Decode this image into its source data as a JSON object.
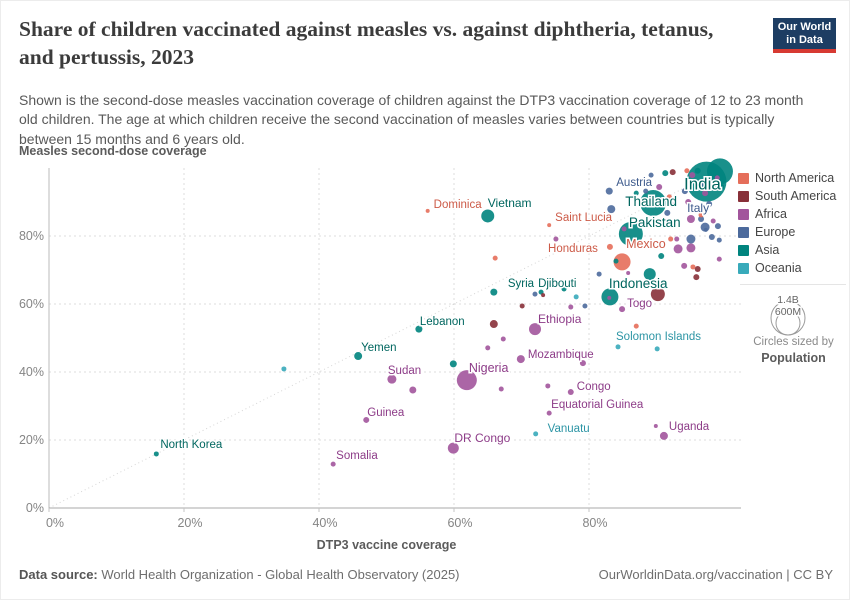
{
  "header": {
    "title": "Share of children vaccinated against measles vs. against diphtheria, tetanus, and pertussis, 2023",
    "subtitle": "Shown is the second-dose measles vaccination coverage of children against the DTP3 vaccination coverage of 12 to 23 month old children. The age at which children receive the second vaccination of measles varies between countries but is typically between 15 months and 6 years old.",
    "logo": {
      "line1": "Our World",
      "line2": "in Data"
    }
  },
  "size_legend": {
    "big_value": "1.4B",
    "small_value": "600M",
    "caption": "Circles sized by",
    "caption_bold": "Population"
  },
  "footer": {
    "source_label": "Data source:",
    "source_text": " World Health Organization - Global Health Observatory (2025)",
    "right_text": "OurWorldinData.org/vaccination | CC BY"
  },
  "chart_data": {
    "type": "scatter",
    "title": "Share of children vaccinated against measles vs. against diphtheria, tetanus, and pertussis, 2023",
    "xlabel": "DTP3 vaccine coverage",
    "ylabel": "Measles second-dose coverage",
    "xlim": [
      0,
      100
    ],
    "ylim": [
      0,
      100
    ],
    "grid": "dashed",
    "parity_line": true,
    "x_ticks": [
      {
        "v": 0,
        "label": "0%"
      },
      {
        "v": 20,
        "label": "20%"
      },
      {
        "v": 40,
        "label": "40%"
      },
      {
        "v": 60,
        "label": "60%"
      },
      {
        "v": 80,
        "label": "80%"
      }
    ],
    "y_ticks": [
      {
        "v": 0,
        "label": "0%"
      },
      {
        "v": 20,
        "label": "20%"
      },
      {
        "v": 40,
        "label": "40%"
      },
      {
        "v": 60,
        "label": "60%"
      },
      {
        "v": 80,
        "label": "80%"
      }
    ],
    "legend_position": "right",
    "series": [
      {
        "name": "North America",
        "color": "#e56e5a",
        "label_color": "#cc5a47",
        "points": [
          {
            "name": "Mexico",
            "x": 84.9,
            "y": 72.4,
            "r": 8.5,
            "label": {
              "dx": 4,
              "dy": -14,
              "size": 12.5,
              "anchor": "start"
            }
          },
          {
            "name": "Honduras",
            "x": 83.1,
            "y": 76.8,
            "r": 3,
            "label": {
              "dx": -12,
              "dy": 5,
              "size": 11.5,
              "anchor": "end"
            }
          },
          {
            "name": "Dominica",
            "x": 56.1,
            "y": 87.4,
            "r": 2,
            "label": {
              "dx": 6,
              "dy": -3,
              "size": 11.5,
              "anchor": "start"
            }
          },
          {
            "name": "Saint Lucia",
            "x": 74.1,
            "y": 83.2,
            "r": 2,
            "label": {
              "dx": 6,
              "dy": -4,
              "size": 11.5,
              "anchor": "start"
            }
          },
          {
            "x": 66.1,
            "y": 73.5,
            "r": 2.5
          },
          {
            "x": 87.0,
            "y": 53.5,
            "r": 2.5
          },
          {
            "x": 91.9,
            "y": 91.5,
            "r": 2.5
          },
          {
            "x": 92.1,
            "y": 79.1,
            "r": 2.5
          },
          {
            "x": 94.5,
            "y": 99.2,
            "r": 2.5
          },
          {
            "x": 95.4,
            "y": 70.9,
            "r": 2.5
          },
          {
            "x": 96.6,
            "y": 86.2,
            "r": 2.5
          }
        ]
      },
      {
        "name": "South America",
        "color": "#883039",
        "label_color": "#7a2b33",
        "points": [
          {
            "x": 90.2,
            "y": 62.9,
            "r": 7
          },
          {
            "x": 65.9,
            "y": 54.1,
            "r": 4
          },
          {
            "x": 70.1,
            "y": 59.4,
            "r": 2.5
          },
          {
            "x": 73.2,
            "y": 62.6,
            "r": 2
          },
          {
            "x": 92.4,
            "y": 98.8,
            "r": 3
          },
          {
            "x": 98.4,
            "y": 95.0,
            "r": 3
          },
          {
            "x": 96.1,
            "y": 70.3,
            "r": 3
          },
          {
            "x": 95.9,
            "y": 67.9,
            "r": 3
          }
        ]
      },
      {
        "name": "Africa",
        "color": "#a2559c",
        "label_color": "#8d3c88",
        "points": [
          {
            "name": "Nigeria",
            "x": 61.9,
            "y": 37.6,
            "r": 10,
            "label": {
              "dx": 2,
              "dy": -8,
              "size": 12.5,
              "anchor": "start"
            }
          },
          {
            "name": "Ethiopia",
            "x": 72.0,
            "y": 52.6,
            "r": 6,
            "label": {
              "dx": 3,
              "dy": -6,
              "size": 12,
              "anchor": "start"
            }
          },
          {
            "name": "DR Congo",
            "x": 59.9,
            "y": 17.6,
            "r": 5.5,
            "label": {
              "dx": 1,
              "dy": -6,
              "size": 12,
              "anchor": "start"
            }
          },
          {
            "name": "Sudan",
            "x": 50.8,
            "y": 37.9,
            "r": 4.5,
            "label": {
              "dx": -4,
              "dy": -5,
              "size": 11.5,
              "anchor": "start"
            }
          },
          {
            "name": "Mozambique",
            "x": 69.9,
            "y": 43.8,
            "r": 4,
            "label": {
              "dx": 7,
              "dy": -1,
              "size": 11.5,
              "anchor": "start"
            }
          },
          {
            "name": "Uganda",
            "x": 91.1,
            "y": 21.2,
            "r": 4,
            "label": {
              "dx": 5,
              "dy": -6,
              "size": 11.5,
              "anchor": "start"
            }
          },
          {
            "name": "Togo",
            "x": 84.9,
            "y": 58.5,
            "r": 3,
            "label": {
              "dx": 5,
              "dy": -2,
              "size": 11.5,
              "anchor": "start"
            }
          },
          {
            "name": "Congo",
            "x": 77.3,
            "y": 34.1,
            "r": 3,
            "label": {
              "dx": 6,
              "dy": -2,
              "size": 11.5,
              "anchor": "start"
            }
          },
          {
            "name": "Guinea",
            "x": 47.0,
            "y": 25.9,
            "r": 3,
            "label": {
              "dx": 1,
              "dy": -4,
              "size": 11.5,
              "anchor": "start"
            }
          },
          {
            "name": "Equatorial Guinea",
            "x": 74.1,
            "y": 27.9,
            "r": 2.5,
            "label": {
              "dx": 2,
              "dy": -5,
              "size": 11.5,
              "anchor": "start"
            }
          },
          {
            "name": "Somalia",
            "x": 42.1,
            "y": 12.9,
            "r": 2.5,
            "label": {
              "dx": 3,
              "dy": -5,
              "size": 11.5,
              "anchor": "start"
            }
          },
          {
            "x": 53.9,
            "y": 34.7,
            "r": 3.5
          },
          {
            "x": 89.9,
            "y": 24.1,
            "r": 2
          },
          {
            "x": 79.1,
            "y": 42.6,
            "r": 3
          },
          {
            "x": 67.3,
            "y": 49.7,
            "r": 2.5
          },
          {
            "x": 65.0,
            "y": 47.1,
            "r": 2.5
          },
          {
            "x": 77.3,
            "y": 59.1,
            "r": 2.5
          },
          {
            "x": 85.8,
            "y": 69.1,
            "r": 2
          },
          {
            "x": 73.9,
            "y": 35.9,
            "r": 2.5
          },
          {
            "x": 67.0,
            "y": 35.0,
            "r": 2.5
          },
          {
            "x": 83.0,
            "y": 61.8,
            "r": 2
          },
          {
            "x": 75.1,
            "y": 79.1,
            "r": 2.5
          },
          {
            "x": 85.2,
            "y": 82.1,
            "r": 2.5
          },
          {
            "x": 90.4,
            "y": 94.4,
            "r": 3
          },
          {
            "x": 92.4,
            "y": 89.1,
            "r": 2.5
          },
          {
            "x": 94.7,
            "y": 90.0,
            "r": 3
          },
          {
            "x": 95.3,
            "y": 97.9,
            "r": 3
          },
          {
            "x": 97.2,
            "y": 92.6,
            "r": 3
          },
          {
            "x": 99.0,
            "y": 97.1,
            "r": 2.5
          },
          {
            "x": 98.4,
            "y": 84.4,
            "r": 2.5
          },
          {
            "x": 93.0,
            "y": 79.1,
            "r": 2.5
          },
          {
            "x": 95.1,
            "y": 76.5,
            "r": 4.5
          },
          {
            "x": 93.2,
            "y": 76.2,
            "r": 4.5
          },
          {
            "x": 94.1,
            "y": 71.2,
            "r": 3
          },
          {
            "x": 95.1,
            "y": 85.0,
            "r": 4
          },
          {
            "x": 99.3,
            "y": 73.2,
            "r": 2.5
          }
        ]
      },
      {
        "name": "Europe",
        "color": "#4c6a9c",
        "label_color": "#3d5a8c",
        "points": [
          {
            "name": "Austria",
            "x": 83.0,
            "y": 93.2,
            "r": 3.5,
            "label": {
              "dx": 7,
              "dy": -5,
              "size": 11.5,
              "anchor": "start"
            }
          },
          {
            "name": "Italy",
            "x": 97.2,
            "y": 82.6,
            "r": 4.5,
            "label": {
              "dx": -18,
              "dy": -15,
              "size": 12,
              "anchor": "start"
            }
          },
          {
            "x": 83.3,
            "y": 87.9,
            "r": 4
          },
          {
            "x": 72.0,
            "y": 62.9,
            "r": 2.5
          },
          {
            "x": 79.4,
            "y": 59.4,
            "r": 2.5
          },
          {
            "x": 81.5,
            "y": 68.8,
            "r": 2.5
          },
          {
            "x": 88.4,
            "y": 93.2,
            "r": 2.5
          },
          {
            "x": 89.2,
            "y": 97.9,
            "r": 2.5
          },
          {
            "x": 91.6,
            "y": 86.8,
            "r": 3
          },
          {
            "x": 94.2,
            "y": 93.2,
            "r": 3
          },
          {
            "x": 96.6,
            "y": 85.0,
            "r": 3
          },
          {
            "x": 96.6,
            "y": 95.3,
            "r": 2.5
          },
          {
            "x": 97.8,
            "y": 89.4,
            "r": 3
          },
          {
            "x": 99.1,
            "y": 82.9,
            "r": 3
          },
          {
            "x": 98.2,
            "y": 79.7,
            "r": 3
          },
          {
            "x": 95.1,
            "y": 79.1,
            "r": 4.5
          },
          {
            "x": 97.3,
            "y": 81.8,
            "r": 2
          },
          {
            "x": 99.3,
            "y": 78.8,
            "r": 2.5
          }
        ]
      },
      {
        "name": "Asia",
        "color": "#00847e",
        "label_color": "#00665f",
        "points": [
          {
            "name": "India",
            "x": 97.4,
            "y": 96.0,
            "r": 20,
            "label": {
              "dx": -4,
              "dy": 8,
              "size": 17,
              "anchor": "middle"
            }
          },
          {
            "x": 99.4,
            "y": 99.0,
            "r": 13
          },
          {
            "name": "Thailand",
            "x": 89.5,
            "y": 89.7,
            "r": 13,
            "label": {
              "dx": -2,
              "dy": 3,
              "size": 13.5,
              "anchor": "middle"
            }
          },
          {
            "name": "Pakistan",
            "x": 86.2,
            "y": 80.6,
            "r": 12,
            "label": {
              "dx": -2,
              "dy": -7,
              "size": 13.5,
              "anchor": "start"
            }
          },
          {
            "name": "Indonesia",
            "x": 83.1,
            "y": 62.1,
            "r": 8.5,
            "label": {
              "dx": -1,
              "dy": -9,
              "size": 13.5,
              "anchor": "start"
            }
          },
          {
            "name": "Vietnam",
            "x": 65.0,
            "y": 85.9,
            "r": 6.5,
            "label": {
              "dx": 0,
              "dy": -9,
              "size": 12,
              "anchor": "start"
            }
          },
          {
            "x": 89.0,
            "y": 68.8,
            "r": 6
          },
          {
            "name": "Yemen",
            "x": 45.8,
            "y": 44.7,
            "r": 4,
            "label": {
              "dx": 3,
              "dy": -5,
              "size": 11.5,
              "anchor": "start"
            }
          },
          {
            "name": "Lebanon",
            "x": 54.8,
            "y": 52.6,
            "r": 3.5,
            "label": {
              "dx": 1,
              "dy": -4,
              "size": 11.5,
              "anchor": "start"
            }
          },
          {
            "name": "Syria",
            "x": 65.9,
            "y": 63.5,
            "r": 3.5,
            "label": {
              "dx": 14,
              "dy": -5,
              "size": 11.5,
              "anchor": "start"
            }
          },
          {
            "x": 59.9,
            "y": 42.4,
            "r": 3.5
          },
          {
            "name": "Djibouti",
            "x": 72.9,
            "y": 63.5,
            "r": 2.5,
            "label": {
              "dx": -3,
              "dy": -5,
              "size": 11.5,
              "anchor": "start"
            }
          },
          {
            "name": "North Korea",
            "x": 15.9,
            "y": 15.9,
            "r": 2.5,
            "label": {
              "dx": 4,
              "dy": -6,
              "size": 11.5,
              "anchor": "start"
            }
          },
          {
            "x": 76.3,
            "y": 64.4,
            "r": 2.5
          },
          {
            "x": 84.0,
            "y": 72.6,
            "r": 2.5
          },
          {
            "x": 87.0,
            "y": 92.6,
            "r": 2.5
          },
          {
            "x": 90.7,
            "y": 74.1,
            "r": 3
          },
          {
            "x": 91.3,
            "y": 98.5,
            "r": 3
          },
          {
            "x": 96.1,
            "y": 99.2,
            "r": 3
          },
          {
            "x": 99.6,
            "y": 94.4,
            "r": 3
          }
        ]
      },
      {
        "name": "Oceania",
        "color": "#38aaba",
        "label_color": "#2d95a5",
        "points": [
          {
            "name": "Vanuatu",
            "x": 72.1,
            "y": 21.8,
            "r": 2.5,
            "label": {
              "dx": 12,
              "dy": -2,
              "size": 11.5,
              "anchor": "start"
            }
          },
          {
            "name": "Solomon Islands",
            "x": 84.3,
            "y": 47.4,
            "r": 2.5,
            "label": {
              "dx": -2,
              "dy": -7,
              "size": 11.5,
              "anchor": "start"
            }
          },
          {
            "x": 34.8,
            "y": 40.9,
            "r": 2.5
          },
          {
            "x": 90.1,
            "y": 46.8,
            "r": 2.5
          },
          {
            "x": 78.1,
            "y": 62.1,
            "r": 2.5
          }
        ]
      }
    ]
  }
}
